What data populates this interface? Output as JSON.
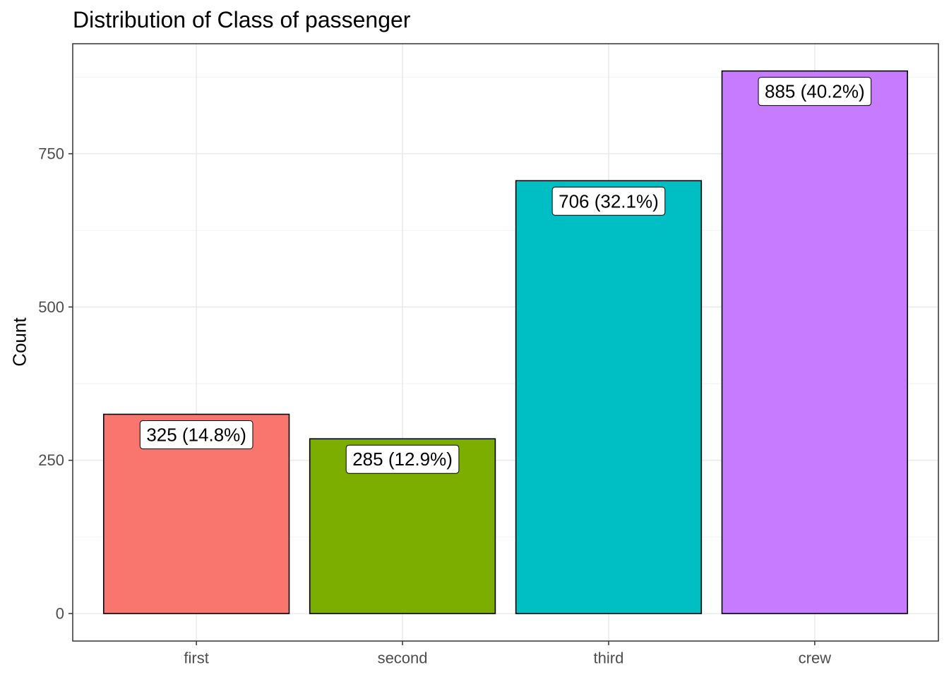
{
  "chart_data": {
    "type": "bar",
    "title": "Distribution of Class of passenger",
    "xlabel": "",
    "ylabel": "Count",
    "categories": [
      "first",
      "second",
      "third",
      "crew"
    ],
    "values": [
      325,
      285,
      706,
      885
    ],
    "data_labels": [
      "325 (14.8%)",
      "285 (12.9%)",
      "706 (32.1%)",
      "885 (40.2%)"
    ],
    "colors": [
      "#F8766D",
      "#7CAE00",
      "#00BFC4",
      "#C77CFF"
    ],
    "y_ticks": [
      0,
      250,
      500,
      750
    ],
    "ylim": [
      -45,
      930
    ],
    "grid": true,
    "legend": "none"
  }
}
